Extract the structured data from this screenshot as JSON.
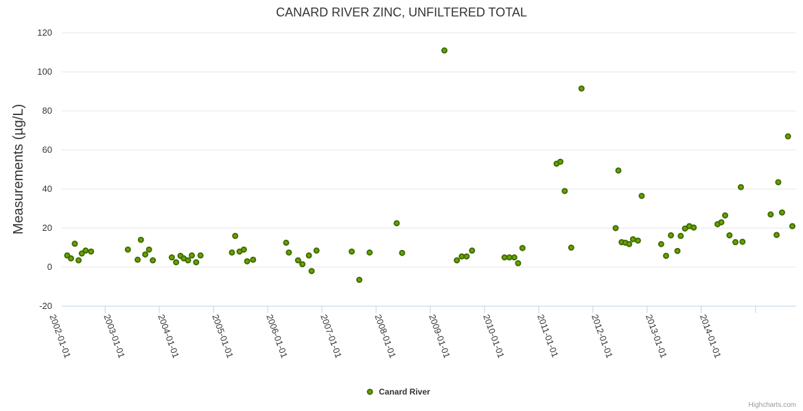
{
  "colors": {
    "point_fill": "#6aa300",
    "point_stroke": "#3f6b00",
    "grid": "#e6e6e6",
    "axis": "#c0d0e0"
  },
  "credits": "Highcharts.com",
  "chart_data": {
    "type": "scatter",
    "title": "CANARD RIVER ZINC, UNFILTERED TOTAL",
    "ylabel": "Measurements (µg/L)",
    "xlabel": "",
    "ylim": [
      -20,
      120
    ],
    "yticks": [
      -20,
      0,
      20,
      40,
      60,
      80,
      100,
      120
    ],
    "xlim": [
      2001.2,
      2014.75
    ],
    "xticks": [
      {
        "value": 2002,
        "label": "2002-01-01"
      },
      {
        "value": 2003,
        "label": "2003-01-01"
      },
      {
        "value": 2004,
        "label": "2004-01-01"
      },
      {
        "value": 2005,
        "label": "2005-01-01"
      },
      {
        "value": 2006,
        "label": "2006-01-01"
      },
      {
        "value": 2007,
        "label": "2007-01-01"
      },
      {
        "value": 2008,
        "label": "2008-01-01"
      },
      {
        "value": 2009,
        "label": "2009-01-01"
      },
      {
        "value": 2010,
        "label": "2010-01-01"
      },
      {
        "value": 2011,
        "label": "2011-01-01"
      },
      {
        "value": 2012,
        "label": "2012-01-01"
      },
      {
        "value": 2013,
        "label": "2013-01-01"
      },
      {
        "value": 2014,
        "label": "2014-01-01"
      }
    ],
    "legend": "bottom-center",
    "series": [
      {
        "name": "Canard River",
        "points": [
          [
            2001.3,
            6
          ],
          [
            2001.37,
            4.5
          ],
          [
            2001.44,
            12
          ],
          [
            2001.51,
            3.5
          ],
          [
            2001.57,
            7
          ],
          [
            2001.64,
            8.5
          ],
          [
            2001.74,
            8
          ],
          [
            2002.42,
            9
          ],
          [
            2002.6,
            3.8
          ],
          [
            2002.66,
            14
          ],
          [
            2002.74,
            6.5
          ],
          [
            2002.81,
            9
          ],
          [
            2002.88,
            3.5
          ],
          [
            2003.23,
            5
          ],
          [
            2003.31,
            2.5
          ],
          [
            2003.39,
            5.8
          ],
          [
            2003.45,
            4.5
          ],
          [
            2003.53,
            3.5
          ],
          [
            2003.6,
            6
          ],
          [
            2003.68,
            2.5
          ],
          [
            2003.76,
            6
          ],
          [
            2004.34,
            7.5
          ],
          [
            2004.4,
            16
          ],
          [
            2004.48,
            8
          ],
          [
            2004.56,
            9
          ],
          [
            2004.62,
            3
          ],
          [
            2004.73,
            3.8
          ],
          [
            2005.34,
            12.5
          ],
          [
            2005.39,
            7.5
          ],
          [
            2005.56,
            3.5
          ],
          [
            2005.64,
            1.5
          ],
          [
            2005.76,
            6
          ],
          [
            2005.81,
            -2
          ],
          [
            2005.9,
            8.5
          ],
          [
            2006.55,
            8
          ],
          [
            2006.69,
            -6.5
          ],
          [
            2006.88,
            7.5
          ],
          [
            2007.38,
            22.5
          ],
          [
            2007.48,
            7.3
          ],
          [
            2008.26,
            111
          ],
          [
            2008.49,
            3.5
          ],
          [
            2008.58,
            5.5
          ],
          [
            2008.67,
            5.5
          ],
          [
            2008.77,
            8.5
          ],
          [
            2009.37,
            5
          ],
          [
            2009.46,
            5
          ],
          [
            2009.55,
            5
          ],
          [
            2009.62,
            2
          ],
          [
            2009.7,
            9.8
          ],
          [
            2010.33,
            53
          ],
          [
            2010.4,
            54
          ],
          [
            2010.48,
            39
          ],
          [
            2010.6,
            10
          ],
          [
            2010.79,
            91.5
          ],
          [
            2011.42,
            20
          ],
          [
            2011.47,
            49.5
          ],
          [
            2011.53,
            12.8
          ],
          [
            2011.6,
            12.5
          ],
          [
            2011.67,
            11.8
          ],
          [
            2011.74,
            14.3
          ],
          [
            2011.83,
            13.6
          ],
          [
            2011.9,
            36.5
          ],
          [
            2012.26,
            11.8
          ],
          [
            2012.35,
            5.8
          ],
          [
            2012.44,
            16.3
          ],
          [
            2012.56,
            8.3
          ],
          [
            2012.62,
            16
          ],
          [
            2012.7,
            19.8
          ],
          [
            2012.78,
            21
          ],
          [
            2012.86,
            20.3
          ],
          [
            2013.3,
            22
          ],
          [
            2013.37,
            23
          ],
          [
            2013.44,
            26.5
          ],
          [
            2013.52,
            16.3
          ],
          [
            2013.63,
            12.8
          ],
          [
            2013.73,
            41
          ],
          [
            2013.76,
            13
          ],
          [
            2014.28,
            27
          ],
          [
            2014.39,
            16.5
          ],
          [
            2014.42,
            43.5
          ],
          [
            2014.49,
            28
          ],
          [
            2014.6,
            67
          ],
          [
            2014.68,
            21
          ]
        ]
      }
    ]
  }
}
